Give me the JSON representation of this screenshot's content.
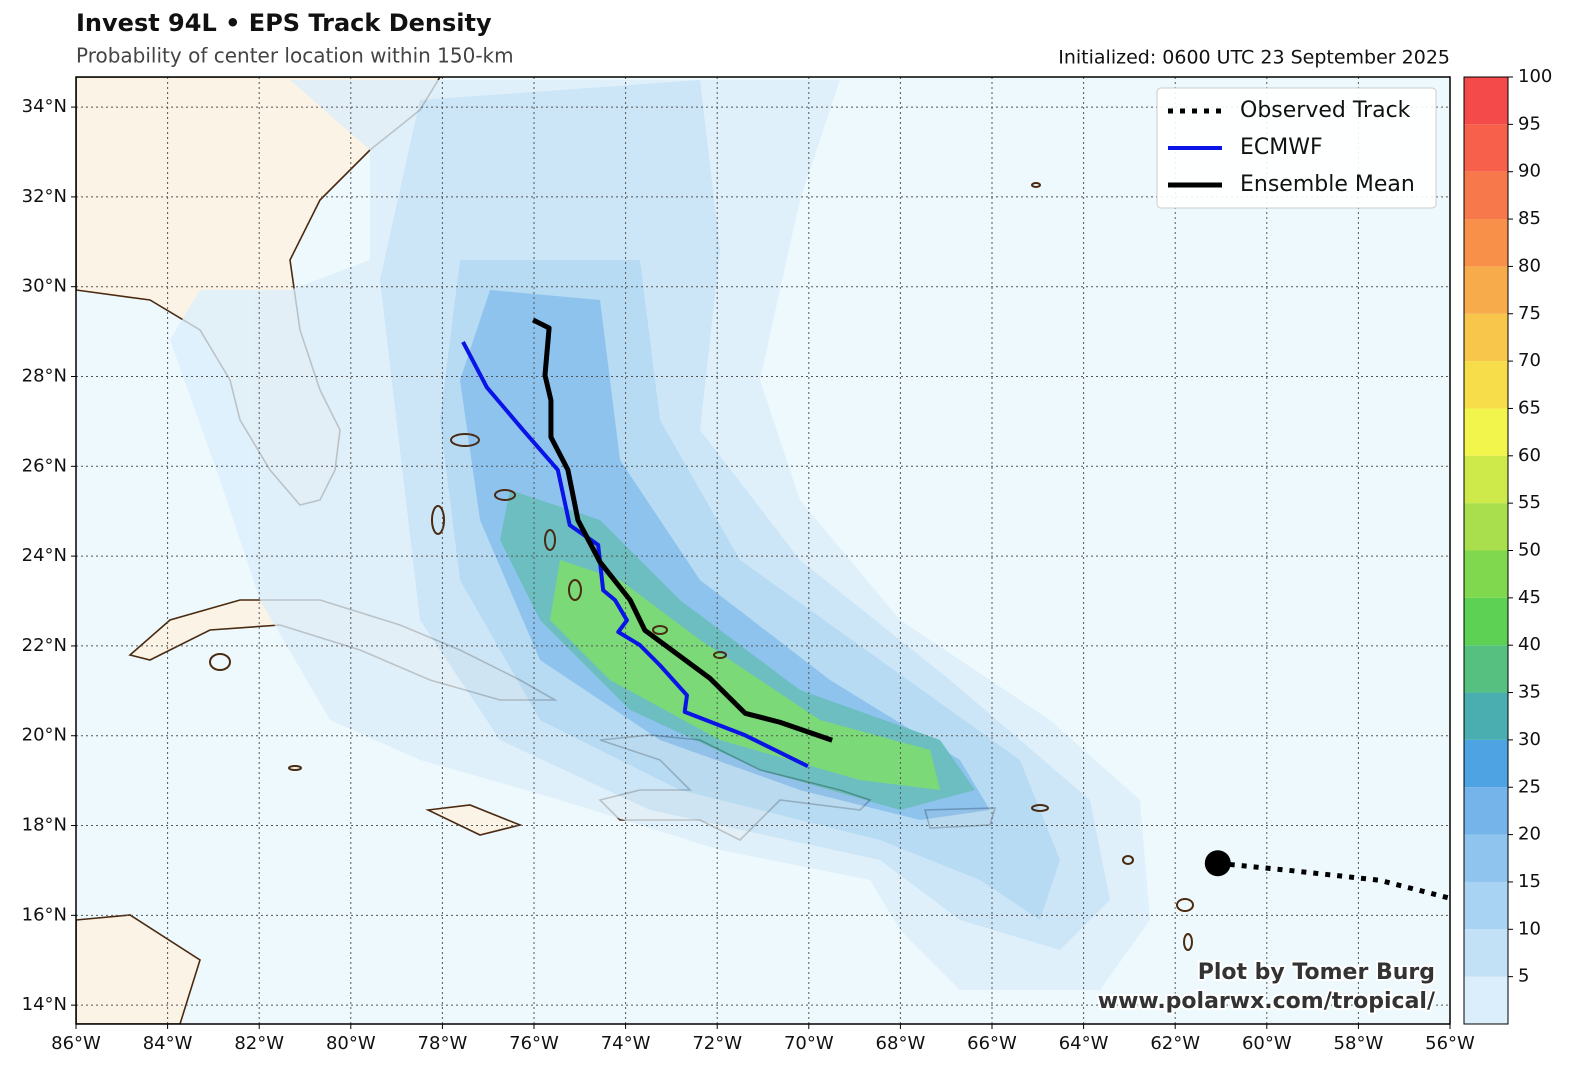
{
  "chart_data": {
    "type": "map",
    "title": "Invest 94L • EPS Track Density",
    "subtitle": "Probability of center location within 150-km",
    "initialized": "Initialized: 0600 UTC 23 September 2025",
    "xlim": [
      -86,
      -56
    ],
    "ylim": [
      13.58,
      34.67
    ],
    "xticks": [
      {
        "value": -86,
        "label": "86°W"
      },
      {
        "value": -84,
        "label": "84°W"
      },
      {
        "value": -82,
        "label": "82°W"
      },
      {
        "value": -80,
        "label": "80°W"
      },
      {
        "value": -78,
        "label": "78°W"
      },
      {
        "value": -76,
        "label": "76°W"
      },
      {
        "value": -74,
        "label": "74°W"
      },
      {
        "value": -72,
        "label": "72°W"
      },
      {
        "value": -70,
        "label": "70°W"
      },
      {
        "value": -68,
        "label": "68°W"
      },
      {
        "value": -66,
        "label": "66°W"
      },
      {
        "value": -64,
        "label": "64°W"
      },
      {
        "value": -62,
        "label": "62°W"
      },
      {
        "value": -60,
        "label": "60°W"
      },
      {
        "value": -58,
        "label": "58°W"
      },
      {
        "value": -56,
        "label": "56°W"
      }
    ],
    "yticks": [
      {
        "value": 14,
        "label": "14°N"
      },
      {
        "value": 16,
        "label": "16°N"
      },
      {
        "value": 18,
        "label": "18°N"
      },
      {
        "value": 20,
        "label": "20°N"
      },
      {
        "value": 22,
        "label": "22°N"
      },
      {
        "value": 24,
        "label": "24°N"
      },
      {
        "value": 26,
        "label": "26°N"
      },
      {
        "value": 28,
        "label": "28°N"
      },
      {
        "value": 30,
        "label": "30°N"
      },
      {
        "value": 32,
        "label": "32°N"
      },
      {
        "value": 34,
        "label": "34°N"
      }
    ],
    "grid": true,
    "legend": "upper right",
    "series": [
      {
        "name": "Observed Track",
        "color": "#000000",
        "style": "dotted",
        "x": [
          -61.07,
          -59.5,
          -57.53,
          -56.0
        ],
        "y": [
          17.16,
          17.0,
          16.78,
          16.38
        ]
      },
      {
        "name": "ECMWF",
        "color": "#0a14e6",
        "style": "solid",
        "x": [
          -77.55,
          -77.03,
          -76.24,
          -75.48,
          -75.22,
          -74.6,
          -74.49,
          -74.23,
          -73.97,
          -74.16,
          -73.69,
          -73.25,
          -72.66,
          -72.71,
          -71.39,
          -70.02
        ],
        "y": [
          28.77,
          27.76,
          26.81,
          25.92,
          24.69,
          24.25,
          23.24,
          23.02,
          22.57,
          22.31,
          22.02,
          21.57,
          20.9,
          20.53,
          20.01,
          19.32
        ]
      },
      {
        "name": "Ensemble Mean",
        "color": "#000000",
        "style": "solid",
        "x": [
          -76.02,
          -75.67,
          -75.76,
          -75.63,
          -75.63,
          -75.26,
          -75.04,
          -74.56,
          -73.9,
          -73.58,
          -72.16,
          -71.39,
          -70.63,
          -69.49
        ],
        "y": [
          29.26,
          29.08,
          28.03,
          27.47,
          26.65,
          25.92,
          24.8,
          23.87,
          23.02,
          22.35,
          21.28,
          20.5,
          20.3,
          19.9
        ]
      }
    ],
    "colorbar": {
      "lim": [
        0,
        100
      ],
      "ticks": [
        5,
        10,
        15,
        20,
        25,
        30,
        35,
        40,
        45,
        50,
        55,
        60,
        65,
        70,
        75,
        80,
        85,
        90,
        95,
        100
      ],
      "colors": [
        "#dbeefb",
        "#c3e1f6",
        "#a9d3f2",
        "#8fc4ee",
        "#74b4ea",
        "#4ea3e2",
        "#4aaeb0",
        "#55c07f",
        "#5dd153",
        "#7fd84e",
        "#a9df4c",
        "#cde94a",
        "#f2f54b",
        "#f8dd4b",
        "#f8c64b",
        "#f7ab4a",
        "#f8904a",
        "#f7784a",
        "#f7604a",
        "#f44a4a"
      ]
    },
    "credit": [
      "Plot by Tomer Burg",
      "www.polarwx.com/tropical/"
    ]
  }
}
